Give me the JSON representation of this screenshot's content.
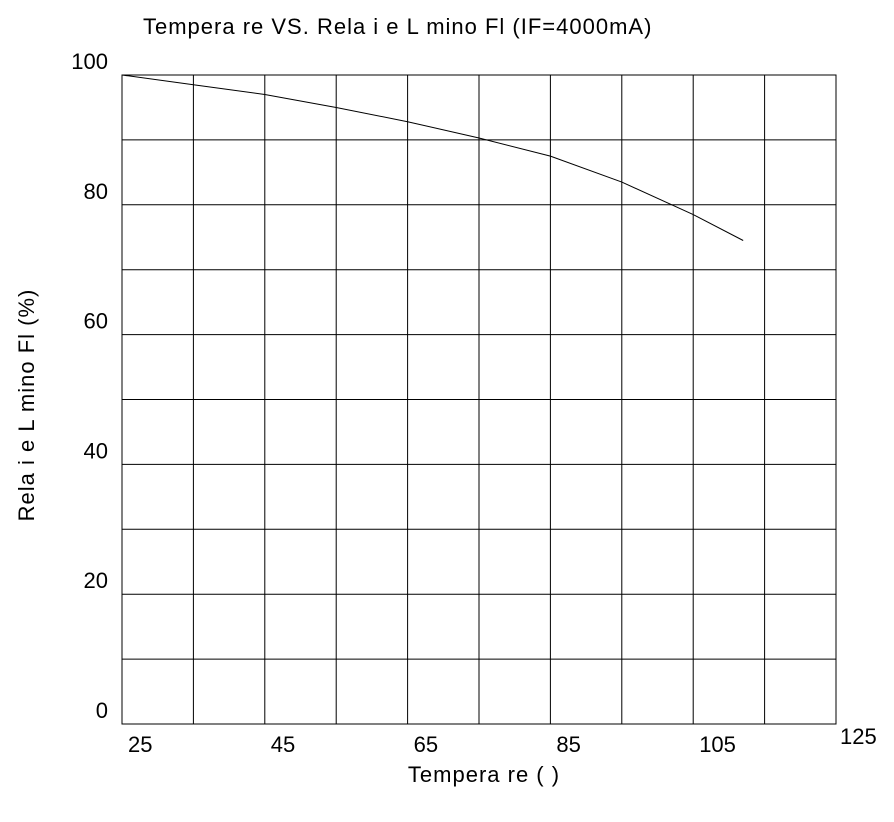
{
  "chart_data": {
    "type": "line",
    "title": "Tempera  re VS. Rela i e L  mino   Fl   (IF=4000mA)",
    "xlabel": "Tempera  re (   )",
    "ylabel": "Rela i e L  mino   Fl   (%)",
    "xlim": [
      25,
      125
    ],
    "ylim": [
      0,
      100
    ],
    "x_ticks": [
      25,
      45,
      65,
      85,
      105,
      125
    ],
    "y_ticks": [
      0,
      20,
      40,
      60,
      80,
      100
    ],
    "grid": true,
    "x_grid_step": 10,
    "y_grid_step": 10,
    "series": [
      {
        "x": [
          25,
          35,
          45,
          55,
          65,
          75,
          85,
          95,
          105,
          112
        ],
        "y": [
          100,
          98.5,
          97,
          95,
          92.8,
          90.3,
          87.5,
          83.5,
          78.5,
          74.5
        ]
      }
    ],
    "colors": {
      "line": "#000000",
      "grid": "#000000",
      "background": "#ffffff"
    }
  }
}
